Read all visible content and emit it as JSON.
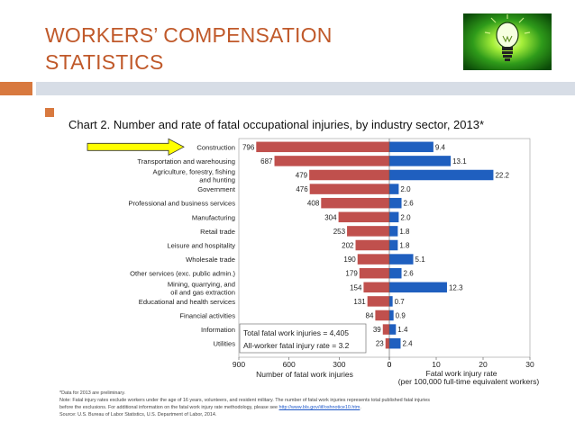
{
  "slide": {
    "title_lines": [
      "WORKERS’ COMPENSATION",
      "STATISTICS"
    ],
    "logo_icon": "lightbulb-icon",
    "colors": {
      "title": "#c0592a",
      "accent": "#d8793f",
      "band": "#d7dde6",
      "arrow": "#ffff00"
    }
  },
  "chart_data": {
    "type": "bar",
    "title": "Chart 2. Number and rate of fatal occupational injuries, by industry sector, 2013*",
    "categories": [
      [
        "Construction"
      ],
      [
        "Transportation and warehousing"
      ],
      [
        "Agriculture, forestry, fishing",
        "and hunting"
      ],
      [
        "Government"
      ],
      [
        "Professional and business services"
      ],
      [
        "Manufacturing"
      ],
      [
        "Retail trade"
      ],
      [
        "Leisure and hospitality"
      ],
      [
        "Wholesale trade"
      ],
      [
        "Other services (exc. public admin.)"
      ],
      [
        "Mining, quarrying, and",
        "oil and gas extraction"
      ],
      [
        "Educational and health services"
      ],
      [
        "Financial activities"
      ],
      [
        "Information"
      ],
      [
        "Utilities"
      ]
    ],
    "series": [
      {
        "values": [
          796,
          687,
          479,
          476,
          408,
          304,
          253,
          202,
          190,
          179,
          154,
          131,
          84,
          39,
          23
        ],
        "color": "#c0504d"
      },
      {
        "values": [
          9.4,
          13.1,
          22.2,
          2.0,
          2.6,
          2.0,
          1.8,
          1.8,
          5.1,
          2.6,
          12.3,
          0.7,
          0.9,
          1.4,
          2.4
        ],
        "color": "#1f5fbf"
      }
    ],
    "left_axis": {
      "label": "Number of fatal work injuries",
      "ticks": [
        900,
        600,
        300,
        0
      ],
      "xlim": [
        0,
        900
      ]
    },
    "right_axis": {
      "label_lines": [
        "Fatal work injury rate",
        "(per 100,000 full-time equivalent workers)"
      ],
      "ticks": [
        0,
        10,
        20,
        30
      ],
      "xlim": [
        0,
        30
      ]
    },
    "summary_box": [
      "Total fatal work injuries = 4,405",
      "All-worker fatal injury rate = 3.2"
    ],
    "highlighted_category": "Construction"
  },
  "footnotes": {
    "prelim": "*Data for 2013 are preliminary.",
    "note1": "Note: Fatal injury rates exclude workers under the age of 16 years, volunteers, and resident military. The number of fatal work injuries represents total published fatal injuries",
    "note2": "before the exclusions. For additional information on the fatal work injury rate methodology, please see",
    "link": "http://www.bls.gov/iif/oshnotice10.htm",
    "note2_end": ".",
    "source": "Source: U.S. Bureau of Labor Statistics, U.S. Department of Labor, 2014."
  }
}
